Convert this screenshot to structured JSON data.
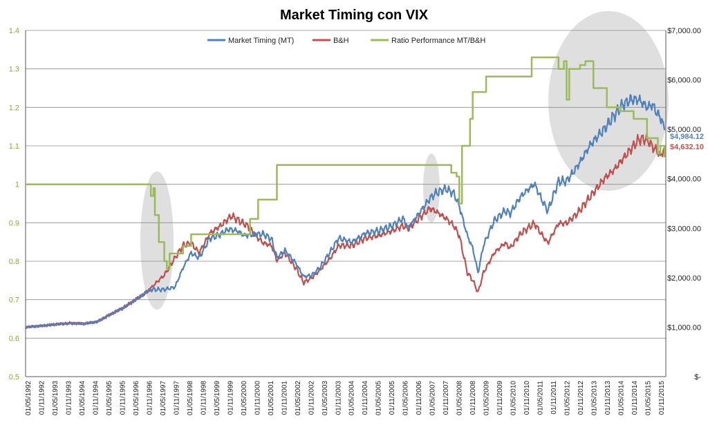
{
  "chart_data": {
    "type": "line",
    "title": "Market Timing con VIX",
    "x_tick_labels": [
      "01/05/1992",
      "01/11/1992",
      "01/05/1993",
      "01/11/1993",
      "01/05/1994",
      "01/11/1994",
      "01/05/1995",
      "01/11/1995",
      "01/05/1996",
      "01/11/1996",
      "01/05/1997",
      "01/11/1997",
      "01/05/1998",
      "01/11/1998",
      "01/05/1999",
      "01/11/1999",
      "01/05/2000",
      "01/11/2000",
      "01/05/2001",
      "01/11/2001",
      "01/05/2002",
      "01/11/2002",
      "01/05/2003",
      "01/11/2003",
      "01/05/2004",
      "01/11/2004",
      "01/05/2005",
      "01/11/2005",
      "01/05/2006",
      "01/11/2006",
      "01/05/2007",
      "01/11/2007",
      "01/05/2008",
      "01/11/2008",
      "01/05/2009",
      "01/11/2009",
      "01/05/2010",
      "01/11/2010",
      "01/05/2011",
      "01/11/2011",
      "01/05/2012",
      "01/11/2012",
      "01/05/2013",
      "01/11/2013",
      "01/05/2014",
      "01/11/2014",
      "01/05/2015",
      "01/11/2015"
    ],
    "y_left": {
      "ticks": [
        "0.5",
        "0.6",
        "0.7",
        "0.8",
        "0.9",
        "1",
        "1.1",
        "1.2",
        "1.3",
        "1.4"
      ],
      "min": 0.5,
      "max": 1.4
    },
    "y_right": {
      "ticks": [
        "$-",
        "$1,000.00",
        "$2,000.00",
        "$3,000.00",
        "$4,000.00",
        "$5,000.00",
        "$6,000.00",
        "$7,000.00"
      ],
      "min": 0,
      "max": 7000
    },
    "grid": "horizontal",
    "legend_position": "top-center",
    "series": [
      {
        "name": "Market Timing (MT)",
        "axis": "right",
        "color": "#4f81bd",
        "points": [
          [
            1992.33,
            1000
          ],
          [
            1993.0,
            1030
          ],
          [
            1993.5,
            1060
          ],
          [
            1994.0,
            1080
          ],
          [
            1994.5,
            1070
          ],
          [
            1995.0,
            1110
          ],
          [
            1995.5,
            1260
          ],
          [
            1996.0,
            1400
          ],
          [
            1996.5,
            1580
          ],
          [
            1996.9,
            1730
          ],
          [
            1997.0,
            1760
          ],
          [
            1997.2,
            1760
          ],
          [
            1997.5,
            1760
          ],
          [
            1997.9,
            1810
          ],
          [
            1998.2,
            2200
          ],
          [
            1998.5,
            2500
          ],
          [
            1998.8,
            2400
          ],
          [
            1999.2,
            2800
          ],
          [
            1999.5,
            2850
          ],
          [
            1999.9,
            2980
          ],
          [
            2000.2,
            2950
          ],
          [
            2000.5,
            2850
          ],
          [
            2000.9,
            2880
          ],
          [
            2001.2,
            2880
          ],
          [
            2001.5,
            2780
          ],
          [
            2001.7,
            2400
          ],
          [
            2002.0,
            2550
          ],
          [
            2002.4,
            2300
          ],
          [
            2002.7,
            2020
          ],
          [
            2003.0,
            2050
          ],
          [
            2003.3,
            2200
          ],
          [
            2003.7,
            2530
          ],
          [
            2004.0,
            2800
          ],
          [
            2004.5,
            2720
          ],
          [
            2005.0,
            2900
          ],
          [
            2005.5,
            2950
          ],
          [
            2006.0,
            3050
          ],
          [
            2006.4,
            3200
          ],
          [
            2006.6,
            3000
          ],
          [
            2007.0,
            3300
          ],
          [
            2007.4,
            3600
          ],
          [
            2007.6,
            3700
          ],
          [
            2008.0,
            3800
          ],
          [
            2008.3,
            3700
          ],
          [
            2008.5,
            3450
          ],
          [
            2008.8,
            2850
          ],
          [
            2009.0,
            2600
          ],
          [
            2009.2,
            2100
          ],
          [
            2009.4,
            2650
          ],
          [
            2009.8,
            3150
          ],
          [
            2010.2,
            3350
          ],
          [
            2010.4,
            3300
          ],
          [
            2010.8,
            3650
          ],
          [
            2011.3,
            3900
          ],
          [
            2011.6,
            3550
          ],
          [
            2011.8,
            3350
          ],
          [
            2012.2,
            3950
          ],
          [
            2012.5,
            3950
          ],
          [
            2012.9,
            4250
          ],
          [
            2013.4,
            4700
          ],
          [
            2013.9,
            5000
          ],
          [
            2014.3,
            5300
          ],
          [
            2014.6,
            5500
          ],
          [
            2014.9,
            5600
          ],
          [
            2015.2,
            5600
          ],
          [
            2015.5,
            5450
          ],
          [
            2015.7,
            5500
          ],
          [
            2015.9,
            5300
          ],
          [
            2016.0,
            5250
          ],
          [
            2016.15,
            4984.12
          ]
        ]
      },
      {
        "name": "B&H",
        "axis": "right",
        "color": "#c0504d",
        "points": [
          [
            1992.33,
            1000
          ],
          [
            1993.0,
            1030
          ],
          [
            1993.5,
            1060
          ],
          [
            1994.0,
            1080
          ],
          [
            1994.5,
            1070
          ],
          [
            1995.0,
            1110
          ],
          [
            1995.5,
            1260
          ],
          [
            1996.0,
            1400
          ],
          [
            1996.5,
            1580
          ],
          [
            1996.9,
            1730
          ],
          [
            1997.2,
            1900
          ],
          [
            1997.5,
            2050
          ],
          [
            1997.9,
            2400
          ],
          [
            1998.2,
            2650
          ],
          [
            1998.5,
            2700
          ],
          [
            1998.8,
            2500
          ],
          [
            1999.2,
            2900
          ],
          [
            1999.6,
            3050
          ],
          [
            2000.0,
            3250
          ],
          [
            2000.3,
            3150
          ],
          [
            2000.6,
            3050
          ],
          [
            2000.9,
            2850
          ],
          [
            2001.2,
            2700
          ],
          [
            2001.5,
            2650
          ],
          [
            2001.7,
            2350
          ],
          [
            2002.0,
            2500
          ],
          [
            2002.4,
            2200
          ],
          [
            2002.7,
            1900
          ],
          [
            2003.0,
            2000
          ],
          [
            2003.3,
            2150
          ],
          [
            2003.7,
            2400
          ],
          [
            2004.0,
            2650
          ],
          [
            2004.5,
            2650
          ],
          [
            2005.0,
            2800
          ],
          [
            2005.5,
            2850
          ],
          [
            2006.0,
            2950
          ],
          [
            2006.4,
            3050
          ],
          [
            2006.6,
            3000
          ],
          [
            2007.0,
            3200
          ],
          [
            2007.4,
            3400
          ],
          [
            2007.6,
            3350
          ],
          [
            2008.0,
            3200
          ],
          [
            2008.3,
            3050
          ],
          [
            2008.5,
            2850
          ],
          [
            2008.8,
            2100
          ],
          [
            2009.0,
            1950
          ],
          [
            2009.2,
            1700
          ],
          [
            2009.4,
            2100
          ],
          [
            2009.8,
            2500
          ],
          [
            2010.2,
            2700
          ],
          [
            2010.4,
            2600
          ],
          [
            2010.8,
            2900
          ],
          [
            2011.3,
            3100
          ],
          [
            2011.6,
            2850
          ],
          [
            2011.8,
            2700
          ],
          [
            2012.2,
            3100
          ],
          [
            2012.5,
            3100
          ],
          [
            2012.9,
            3300
          ],
          [
            2013.4,
            3650
          ],
          [
            2013.9,
            4000
          ],
          [
            2014.3,
            4200
          ],
          [
            2014.6,
            4400
          ],
          [
            2014.9,
            4600
          ],
          [
            2015.2,
            4800
          ],
          [
            2015.5,
            4800
          ],
          [
            2015.7,
            4650
          ],
          [
            2015.9,
            4550
          ],
          [
            2016.0,
            4450
          ],
          [
            2016.15,
            4632.1
          ]
        ]
      },
      {
        "name": "Ratio Performance MT/B&H",
        "axis": "left",
        "color": "#9bbb59",
        "points": [
          [
            1992.33,
            1.0
          ],
          [
            1996.9,
            1.0
          ],
          [
            1997.0,
            0.97
          ],
          [
            1997.1,
            0.99
          ],
          [
            1997.15,
            0.92
          ],
          [
            1997.3,
            0.85
          ],
          [
            1997.5,
            0.8
          ],
          [
            1997.6,
            0.78
          ],
          [
            1997.7,
            0.82
          ],
          [
            1997.9,
            0.82
          ],
          [
            1998.2,
            0.84
          ],
          [
            1998.5,
            0.87
          ],
          [
            2000.6,
            0.87
          ],
          [
            2000.7,
            0.91
          ],
          [
            2000.9,
            0.91
          ],
          [
            2001.0,
            0.96
          ],
          [
            2001.5,
            0.96
          ],
          [
            2001.7,
            1.05
          ],
          [
            2008.0,
            1.05
          ],
          [
            2008.2,
            1.03
          ],
          [
            2008.4,
            1.02
          ],
          [
            2008.5,
            0.95
          ],
          [
            2008.6,
            1.1
          ],
          [
            2008.8,
            1.1
          ],
          [
            2008.9,
            1.17
          ],
          [
            2009.0,
            1.24
          ],
          [
            2009.3,
            1.24
          ],
          [
            2009.5,
            1.28
          ],
          [
            2011.0,
            1.28
          ],
          [
            2011.2,
            1.33
          ],
          [
            2012.0,
            1.33
          ],
          [
            2012.2,
            1.3
          ],
          [
            2012.4,
            1.32
          ],
          [
            2012.5,
            1.22
          ],
          [
            2012.6,
            1.3
          ],
          [
            2013.0,
            1.31
          ],
          [
            2013.2,
            1.32
          ],
          [
            2013.5,
            1.25
          ],
          [
            2014.0,
            1.2
          ],
          [
            2014.5,
            1.19
          ],
          [
            2015.0,
            1.17
          ],
          [
            2015.5,
            1.12
          ],
          [
            2015.8,
            1.12
          ],
          [
            2015.9,
            1.08
          ],
          [
            2016.0,
            1.1
          ],
          [
            2016.15,
            1.07
          ]
        ]
      }
    ],
    "end_labels": [
      {
        "text": "$4,984.12",
        "series": 0,
        "color": "#4f81bd"
      },
      {
        "text": "$4,632.10",
        "series": 1,
        "color": "#c0504d"
      }
    ]
  }
}
